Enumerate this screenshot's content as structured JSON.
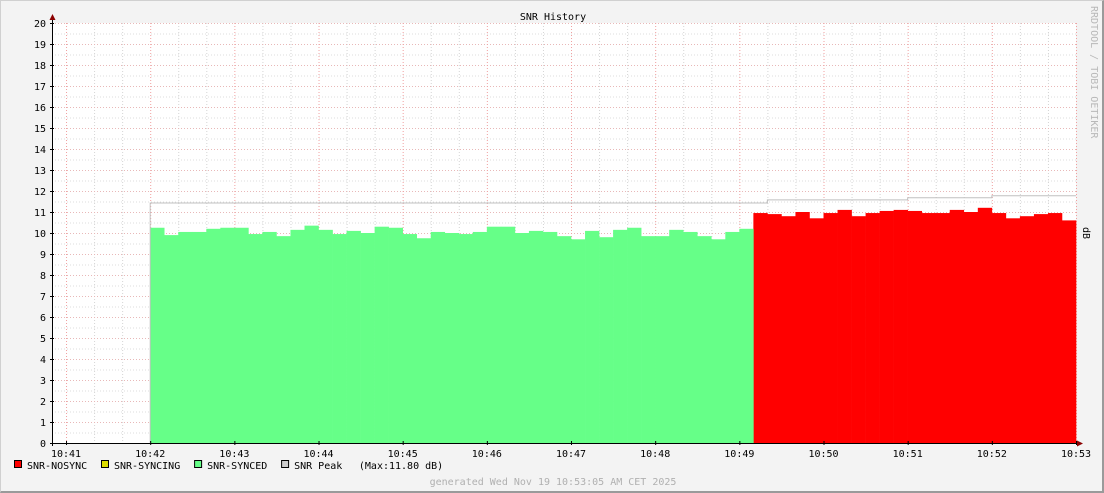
{
  "chart_data": {
    "type": "area",
    "title": "SNR History",
    "ylabel": "dB",
    "watermark": "RRDTOOL / TOBI OETIKER",
    "ylim": [
      0,
      20
    ],
    "yticks": [
      0,
      1,
      2,
      3,
      4,
      5,
      6,
      7,
      8,
      9,
      10,
      11,
      12,
      13,
      14,
      15,
      16,
      17,
      18,
      19,
      20
    ],
    "xlim": [
      "10:40:50",
      "10:53:00"
    ],
    "xticks": [
      "10:41",
      "10:42",
      "10:43",
      "10:44",
      "10:45",
      "10:46",
      "10:47",
      "10:48",
      "10:49",
      "10:50",
      "10:51",
      "10:52",
      "10:53"
    ],
    "grid": true,
    "step_seconds": 10,
    "series": [
      {
        "name": "SNR-NOSYNC",
        "color": "#FF0000",
        "start": "10:49:10",
        "values": [
          10.95,
          10.9,
          10.8,
          11.0,
          10.7,
          10.95,
          11.1,
          10.8,
          10.95,
          11.05,
          11.1,
          11.05,
          10.95,
          10.95,
          11.1,
          11.0,
          11.2,
          10.95,
          10.7,
          10.8,
          10.9,
          10.95,
          10.6
        ]
      },
      {
        "name": "SNR-SYNCING",
        "color": "#DDDD00",
        "start": "",
        "values": []
      },
      {
        "name": "SNR-SYNCED",
        "color": "#66FF88",
        "start": "10:42:00",
        "values": [
          10.25,
          9.9,
          10.05,
          10.05,
          10.2,
          10.25,
          10.25,
          9.95,
          10.05,
          9.85,
          10.15,
          10.35,
          10.15,
          9.95,
          10.1,
          10.0,
          10.3,
          10.25,
          9.95,
          9.75,
          10.05,
          10.0,
          9.95,
          10.05,
          10.3,
          10.3,
          10.0,
          10.1,
          10.05,
          9.85,
          9.7,
          10.1,
          9.8,
          10.15,
          10.25,
          9.85,
          9.85,
          10.15,
          10.05,
          9.85,
          9.7,
          10.05,
          10.2
        ]
      },
      {
        "name": "SNR Peak",
        "color": "#CCCCCC",
        "line_color": "#C0C0C0",
        "steps": [
          [
            "10:42:00",
            11.45
          ],
          [
            "10:49:20",
            11.6
          ],
          [
            "10:51:00",
            11.7
          ],
          [
            "10:52:00",
            11.8
          ],
          [
            "10:53:00",
            11.8
          ]
        ]
      }
    ],
    "legend": {
      "placement": "bottom-left",
      "items": [
        "SNR-NOSYNC",
        "SNR-SYNCING",
        "SNR-SYNCED",
        "SNR Peak"
      ],
      "peak_note": "(Max:11.80 dB)"
    },
    "footer": "generated Wed Nov 19 10:53:05 AM CET 2025"
  }
}
